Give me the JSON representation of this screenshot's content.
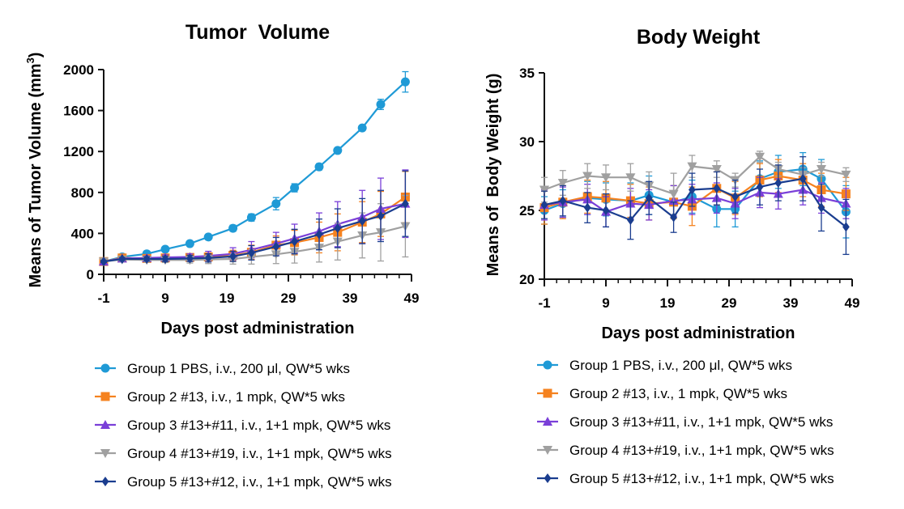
{
  "chart_data": [
    {
      "type": "line",
      "title": "Tumor  Volume",
      "xlabel": "Days post administration",
      "ylabel": "Means of Tumor Volume (mm",
      "ylabel_sup": "3",
      "ylabel_end": ")",
      "xlim": [
        -1,
        49
      ],
      "ylim": [
        0,
        2000
      ],
      "xticks": [
        -1,
        9,
        19,
        29,
        39,
        49
      ],
      "yticks": [
        0,
        400,
        800,
        1200,
        1600,
        2000
      ],
      "x": [
        -1,
        2,
        6,
        9,
        13,
        16,
        20,
        23,
        27,
        30,
        34,
        37,
        41,
        44,
        48
      ],
      "series": [
        {
          "name": "Group 1 PBS, i.v., 200 μl, QW*5 wks",
          "color": "#1f9ad6",
          "marker": "circle",
          "values": [
            125,
            170,
            200,
            245,
            300,
            365,
            450,
            555,
            690,
            845,
            1050,
            1210,
            1430,
            1660,
            1880
          ],
          "errors": [
            10,
            15,
            20,
            20,
            25,
            25,
            30,
            35,
            60,
            40,
            30,
            25,
            25,
            50,
            100
          ]
        },
        {
          "name": "Group 2 #13, i.v., 1 mpk, QW*5 wks",
          "color": "#f5821f",
          "marker": "square",
          "values": [
            125,
            160,
            155,
            160,
            165,
            170,
            185,
            215,
            285,
            310,
            360,
            410,
            510,
            590,
            755
          ],
          "errors": [
            10,
            15,
            20,
            25,
            30,
            40,
            50,
            70,
            90,
            120,
            150,
            180,
            200,
            220,
            250
          ]
        },
        {
          "name": "Group 3 #13+#11, i.v., 1+1 mpk, QW*5 wks",
          "color": "#7a3fd8",
          "marker": "triangle",
          "values": [
            125,
            155,
            160,
            165,
            170,
            180,
            200,
            240,
            300,
            350,
            420,
            490,
            560,
            640,
            690
          ],
          "errors": [
            10,
            15,
            20,
            25,
            30,
            45,
            60,
            80,
            110,
            140,
            180,
            220,
            260,
            300,
            330
          ]
        },
        {
          "name": "Group 4 #13+#19, i.v., 1+1 mpk, QW*5 wks",
          "color": "#a0a0a0",
          "marker": "triangle-down",
          "values": [
            125,
            145,
            140,
            140,
            140,
            145,
            150,
            170,
            195,
            220,
            260,
            320,
            380,
            410,
            470
          ],
          "errors": [
            10,
            15,
            20,
            25,
            30,
            40,
            50,
            70,
            90,
            110,
            140,
            180,
            220,
            280,
            300
          ]
        },
        {
          "name": "Group 5 #13+#12, i.v., 1+1 mpk, QW*5 wks",
          "color": "#1a3d8f",
          "marker": "diamond",
          "values": [
            125,
            150,
            150,
            150,
            155,
            160,
            175,
            210,
            270,
            320,
            390,
            450,
            520,
            570,
            690
          ],
          "errors": [
            10,
            15,
            20,
            25,
            30,
            40,
            50,
            70,
            90,
            120,
            150,
            190,
            220,
            250,
            320
          ]
        }
      ]
    },
    {
      "type": "line",
      "title": "Body Weight",
      "xlabel": "Days post administration",
      "ylabel": "Means of  Body Weight (g)",
      "xlim": [
        -1,
        49
      ],
      "ylim": [
        20,
        35
      ],
      "xticks": [
        -1,
        9,
        19,
        29,
        39,
        49
      ],
      "yticks": [
        20,
        25,
        30,
        35
      ],
      "x": [
        -1,
        2,
        6,
        9,
        13,
        16,
        20,
        23,
        27,
        30,
        34,
        37,
        41,
        44,
        48
      ],
      "series": [
        {
          "name": "Group 1 PBS, i.v., 200 μl, QW*5 wks",
          "color": "#1f9ad6",
          "marker": "circle",
          "values": [
            25.0,
            25.5,
            25.9,
            25.8,
            25.7,
            26.1,
            25.6,
            26.0,
            25.1,
            25.1,
            27.3,
            27.8,
            28.0,
            27.3,
            24.9
          ],
          "errors": [
            1.0,
            1.0,
            1.2,
            1.2,
            1.3,
            1.4,
            1.2,
            1.2,
            1.3,
            1.3,
            1.3,
            1.2,
            1.2,
            1.4,
            1.9
          ]
        },
        {
          "name": "Group 2 #13, i.v., 1 mpk, QW*5 wks",
          "color": "#f5821f",
          "marker": "square",
          "values": [
            25.2,
            25.6,
            26.0,
            25.9,
            25.7,
            25.5,
            25.6,
            25.3,
            26.6,
            25.9,
            27.2,
            27.5,
            27.2,
            26.5,
            26.2
          ],
          "errors": [
            1.2,
            1.2,
            1.2,
            1.2,
            1.2,
            1.2,
            1.2,
            1.4,
            1.2,
            1.2,
            1.2,
            1.2,
            1.2,
            1.2,
            1.2
          ]
        },
        {
          "name": "Group 3 #13+#11, i.v., 1+1 mpk, QW*5 wks",
          "color": "#7a3fd8",
          "marker": "triangle",
          "values": [
            25.4,
            25.6,
            25.8,
            24.9,
            25.5,
            25.4,
            25.7,
            25.8,
            25.9,
            25.5,
            26.3,
            26.2,
            26.5,
            25.9,
            25.5
          ],
          "errors": [
            1.1,
            1.1,
            1.1,
            1.1,
            1.1,
            1.1,
            1.1,
            1.1,
            1.1,
            1.1,
            1.1,
            1.1,
            1.1,
            1.1,
            1.1
          ]
        },
        {
          "name": "Group 4 #13+#19, i.v., 1+1 mpk, QW*5 wks",
          "color": "#a0a0a0",
          "marker": "triangle-down",
          "values": [
            26.5,
            27.0,
            27.5,
            27.4,
            27.4,
            26.8,
            26.2,
            28.2,
            28.0,
            27.2,
            28.9,
            28.0,
            27.6,
            28.0,
            27.6
          ],
          "errors": [
            0.9,
            0.9,
            0.9,
            0.9,
            1.0,
            1.0,
            1.5,
            0.8,
            0.6,
            0.5,
            0.4,
            0.5,
            0.5,
            0.5,
            0.5
          ]
        },
        {
          "name": "Group 5 #13+#12, i.v., 1+1 mpk, QW*5 wks",
          "color": "#1a3d8f",
          "marker": "diamond",
          "values": [
            25.4,
            25.7,
            25.2,
            25.0,
            24.3,
            25.9,
            24.5,
            26.5,
            26.6,
            26.0,
            26.7,
            27.0,
            27.3,
            25.2,
            23.8
          ],
          "errors": [
            1.0,
            1.1,
            1.1,
            1.2,
            1.4,
            1.2,
            1.1,
            1.2,
            1.2,
            1.2,
            1.3,
            1.3,
            1.6,
            1.7,
            2.0
          ]
        }
      ]
    }
  ]
}
